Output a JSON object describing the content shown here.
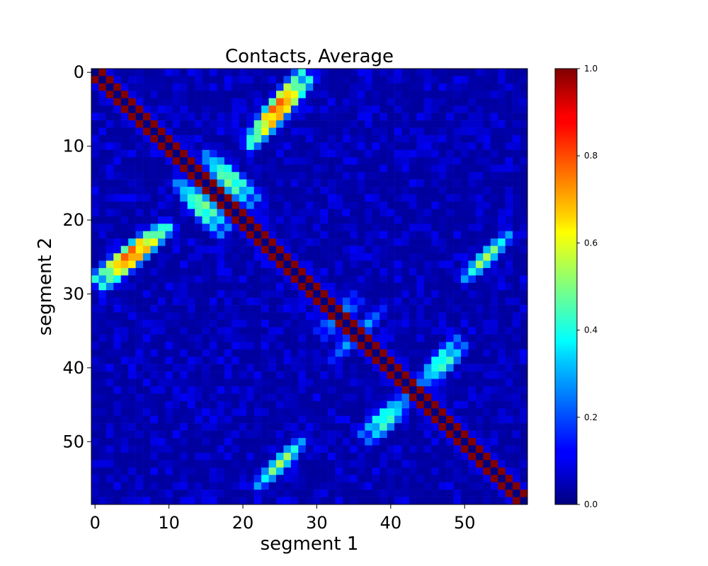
{
  "chart_data": {
    "type": "heatmap",
    "title": "Contacts, Average",
    "xlabel": "segment 1",
    "ylabel": "segment 2",
    "n": 59,
    "x_ticks": [
      0,
      10,
      20,
      30,
      40,
      50
    ],
    "y_ticks": [
      0,
      10,
      20,
      30,
      40,
      50
    ],
    "xlim": [
      -0.5,
      58.5
    ],
    "ylim": [
      58.5,
      -0.5
    ],
    "colormap": "jet",
    "colorbar": {
      "range": [
        0.0,
        1.0
      ],
      "ticks": [
        "0.0",
        "0.2",
        "0.4",
        "0.6",
        "0.8",
        "1.0"
      ]
    },
    "structure": {
      "main_diagonal_value": 1.0,
      "near_diagonal_value": 0.0,
      "background_value": 0.03,
      "bands": [
        {
          "kind": "anti",
          "from": [
            0,
            28
          ],
          "to": [
            9,
            21
          ],
          "peak": 0.8
        },
        {
          "kind": "anti",
          "from": [
            21,
            10
          ],
          "to": [
            29,
            1
          ],
          "peak": 0.8
        },
        {
          "kind": "anti",
          "from": [
            12,
            15
          ],
          "to": [
            18,
            21
          ],
          "peak": 0.5
        },
        {
          "kind": "anti",
          "from": [
            15,
            11
          ],
          "to": [
            22,
            17
          ],
          "peak": 0.5
        },
        {
          "kind": "anti",
          "from": [
            50,
            28
          ],
          "to": [
            55,
            23
          ],
          "peak": 0.55
        },
        {
          "kind": "anti",
          "from": [
            22,
            56
          ],
          "to": [
            28,
            50
          ],
          "peak": 0.55
        },
        {
          "kind": "anti",
          "from": [
            44,
            42
          ],
          "to": [
            49,
            36
          ],
          "peak": 0.45
        },
        {
          "kind": "anti",
          "from": [
            37,
            50
          ],
          "to": [
            42,
            45
          ],
          "peak": 0.45
        },
        {
          "kind": "anti",
          "from": [
            34,
            37
          ],
          "to": [
            39,
            32
          ],
          "peak": 0.3
        },
        {
          "kind": "anti",
          "from": [
            30,
            35
          ],
          "to": [
            36,
            31
          ],
          "peak": 0.3
        }
      ]
    }
  }
}
